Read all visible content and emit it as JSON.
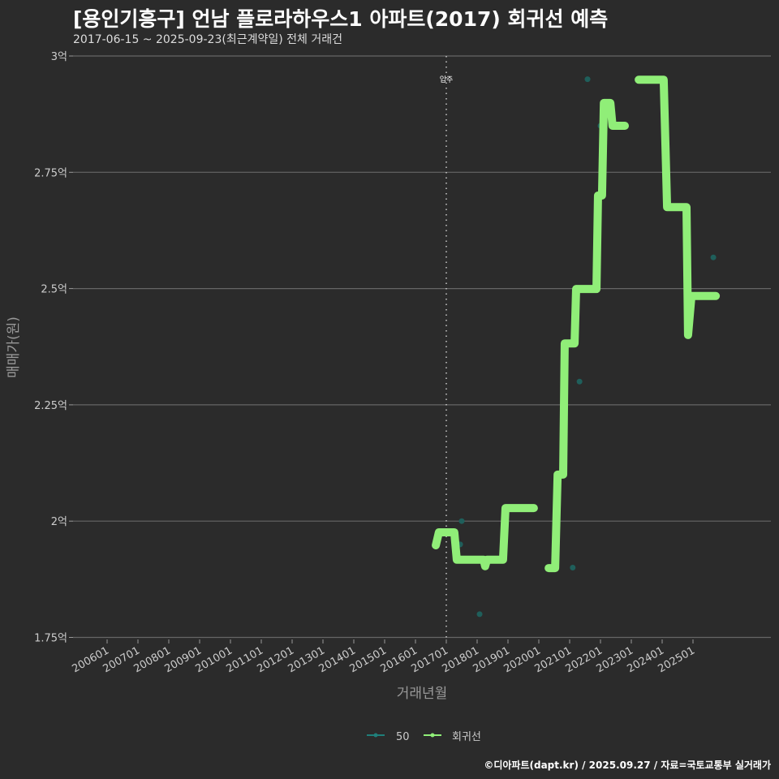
{
  "header": {
    "title": "[용인기흥구] 언남 플로라하우스1 아파트(2017) 회귀선 예측",
    "subtitle": "2017-06-15 ~ 2025-09-23(최근계약일) 전체 거래건"
  },
  "footer": "©디아파트(dapt.kr) / 2025.09.27 / 자료=국토교통부 실거래가",
  "chart_data": {
    "type": "line",
    "title": "[용인기흥구] 언남 플로라하우스1 아파트(2017) 회귀선 예측",
    "xlabel": "거래년월",
    "ylabel": "매매가(원)",
    "xlim": [
      2005.5,
      2026.2
    ],
    "ylim": [
      1.75,
      3.0
    ],
    "x_ticks": [
      {
        "v": 2006,
        "label": "200601"
      },
      {
        "v": 2007,
        "label": "200701"
      },
      {
        "v": 2008,
        "label": "200801"
      },
      {
        "v": 2009,
        "label": "200901"
      },
      {
        "v": 2010,
        "label": "201001"
      },
      {
        "v": 2011,
        "label": "201101"
      },
      {
        "v": 2012,
        "label": "201201"
      },
      {
        "v": 2013,
        "label": "201301"
      },
      {
        "v": 2014,
        "label": "201401"
      },
      {
        "v": 2015,
        "label": "201501"
      },
      {
        "v": 2016,
        "label": "201601"
      },
      {
        "v": 2017,
        "label": "201701"
      },
      {
        "v": 2018,
        "label": "201801"
      },
      {
        "v": 2019,
        "label": "201901"
      },
      {
        "v": 2020,
        "label": "202001"
      },
      {
        "v": 2021,
        "label": "202101"
      },
      {
        "v": 2022,
        "label": "202201"
      },
      {
        "v": 2023,
        "label": "202301"
      },
      {
        "v": 2024,
        "label": "202401"
      },
      {
        "v": 2025,
        "label": "202501"
      }
    ],
    "y_ticks": [
      {
        "v": 1.75,
        "label": "1.75억"
      },
      {
        "v": 2.0,
        "label": "2억"
      },
      {
        "v": 2.25,
        "label": "2.25억"
      },
      {
        "v": 2.5,
        "label": "2.5억"
      },
      {
        "v": 2.75,
        "label": "2.75억"
      },
      {
        "v": 3.0,
        "label": "3억"
      }
    ],
    "grid": true,
    "annotation": {
      "x": 2017,
      "label": "입주"
    },
    "legend": {
      "placement": "bottom",
      "entries": [
        "50",
        "회귀선"
      ]
    },
    "series": [
      {
        "name": "50",
        "type": "scatter",
        "color": "#1f5f5b",
        "points": [
          [
            2017.45,
            1.95
          ],
          [
            2017.5,
            2.0
          ],
          [
            2018.08,
            1.8
          ],
          [
            2021.1,
            1.9
          ],
          [
            2021.32,
            2.3
          ],
          [
            2021.58,
            2.95
          ],
          [
            2022.0,
            2.85
          ],
          [
            2025.66,
            2.567
          ]
        ]
      },
      {
        "name": "회귀선",
        "type": "line",
        "color": "#90ee78",
        "segments": [
          [
            [
              2016.66,
              1.948
            ],
            [
              2016.76,
              1.976
            ],
            [
              2017.26,
              1.976
            ],
            [
              2017.34,
              1.917
            ],
            [
              2018.21,
              1.917
            ],
            [
              2018.26,
              1.903
            ],
            [
              2018.32,
              1.917
            ],
            [
              2018.84,
              1.917
            ],
            [
              2018.92,
              2.028
            ],
            [
              2019.84,
              2.028
            ]
          ],
          [
            [
              2020.32,
              1.899
            ],
            [
              2020.53,
              1.899
            ],
            [
              2020.61,
              2.1
            ],
            [
              2020.79,
              2.1
            ],
            [
              2020.84,
              2.382
            ],
            [
              2021.16,
              2.382
            ],
            [
              2021.21,
              2.499
            ],
            [
              2021.87,
              2.499
            ],
            [
              2021.92,
              2.7
            ],
            [
              2022.05,
              2.7
            ],
            [
              2022.11,
              2.899
            ],
            [
              2022.32,
              2.899
            ],
            [
              2022.39,
              2.85
            ],
            [
              2022.79,
              2.85
            ]
          ],
          [
            [
              2023.24,
              2.949
            ],
            [
              2024.05,
              2.949
            ],
            [
              2024.16,
              2.675
            ],
            [
              2024.79,
              2.675
            ],
            [
              2024.84,
              2.4
            ],
            [
              2024.95,
              2.484
            ],
            [
              2025.74,
              2.484
            ]
          ]
        ]
      }
    ]
  }
}
